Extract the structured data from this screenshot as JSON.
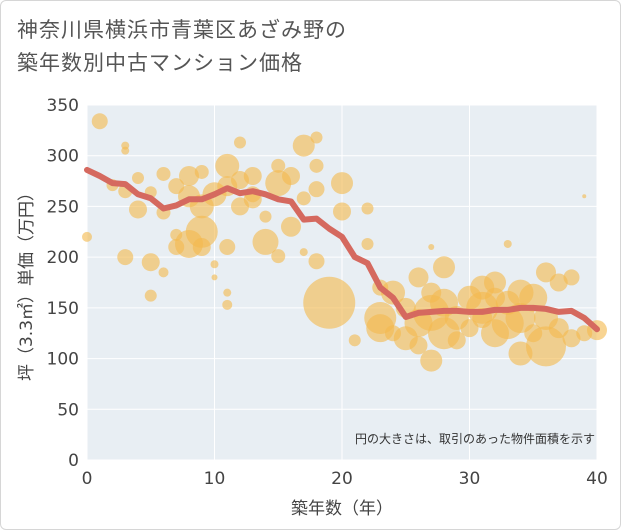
{
  "title_lines": [
    "神奈川県横浜市青葉区あざみ野の",
    "築年数別中古マンション価格"
  ],
  "colors": {
    "plot_bg": "#e8eef3",
    "grid": "#ffffff",
    "bubble": "#f4b94f",
    "line": "#d5695f",
    "axis_text": "#444444"
  },
  "chart_data": {
    "type": "scatter",
    "xlabel": "築年数（年）",
    "ylabel": "坪（3.3㎡）単価（万円）",
    "xlim": [
      0,
      40
    ],
    "ylim": [
      0,
      350
    ],
    "xticks": [
      0,
      10,
      20,
      30,
      40
    ],
    "yticks": [
      0,
      50,
      100,
      150,
      200,
      250,
      300,
      350
    ],
    "grid": true,
    "annotation": "円の大きさは、取引のあった物件面積を示す",
    "line_series": {
      "x": [
        0,
        1,
        2,
        3,
        4,
        5,
        6,
        7,
        8,
        9,
        10,
        11,
        12,
        13,
        14,
        15,
        16,
        17,
        18,
        19,
        20,
        21,
        22,
        23,
        24,
        25,
        26,
        27,
        28,
        29,
        30,
        31,
        32,
        33,
        34,
        35,
        36,
        37,
        38,
        39,
        40
      ],
      "y": [
        286,
        280,
        273,
        272,
        262,
        258,
        248,
        251,
        257,
        257,
        262,
        268,
        263,
        265,
        262,
        257,
        255,
        237,
        238,
        228,
        220,
        200,
        194,
        170,
        160,
        141,
        145,
        146,
        147,
        147,
        146,
        146,
        148,
        148,
        150,
        150,
        149,
        146,
        147,
        140,
        129
      ]
    },
    "bubbles": [
      {
        "x": 0,
        "y": 220,
        "s": 5
      },
      {
        "x": 1,
        "y": 334,
        "s": 8
      },
      {
        "x": 2,
        "y": 271,
        "s": 6
      },
      {
        "x": 3,
        "y": 310,
        "s": 4
      },
      {
        "x": 3,
        "y": 305,
        "s": 4
      },
      {
        "x": 3,
        "y": 265,
        "s": 7
      },
      {
        "x": 3,
        "y": 200,
        "s": 8
      },
      {
        "x": 4,
        "y": 278,
        "s": 6
      },
      {
        "x": 4,
        "y": 247,
        "s": 9
      },
      {
        "x": 5,
        "y": 264,
        "s": 6
      },
      {
        "x": 5,
        "y": 195,
        "s": 9
      },
      {
        "x": 5,
        "y": 162,
        "s": 6
      },
      {
        "x": 6,
        "y": 282,
        "s": 7
      },
      {
        "x": 6,
        "y": 244,
        "s": 7
      },
      {
        "x": 6,
        "y": 185,
        "s": 5
      },
      {
        "x": 7,
        "y": 270,
        "s": 8
      },
      {
        "x": 7,
        "y": 222,
        "s": 6
      },
      {
        "x": 7,
        "y": 210,
        "s": 8
      },
      {
        "x": 8,
        "y": 280,
        "s": 10
      },
      {
        "x": 8,
        "y": 260,
        "s": 11
      },
      {
        "x": 8,
        "y": 213,
        "s": 14
      },
      {
        "x": 9,
        "y": 284,
        "s": 7
      },
      {
        "x": 9,
        "y": 250,
        "s": 12
      },
      {
        "x": 9,
        "y": 225,
        "s": 16
      },
      {
        "x": 9,
        "y": 210,
        "s": 9
      },
      {
        "x": 10,
        "y": 262,
        "s": 12
      },
      {
        "x": 10,
        "y": 193,
        "s": 4
      },
      {
        "x": 10,
        "y": 180,
        "s": 3
      },
      {
        "x": 11,
        "y": 290,
        "s": 12
      },
      {
        "x": 11,
        "y": 270,
        "s": 10
      },
      {
        "x": 11,
        "y": 210,
        "s": 8
      },
      {
        "x": 11,
        "y": 165,
        "s": 4
      },
      {
        "x": 11,
        "y": 153,
        "s": 5
      },
      {
        "x": 12,
        "y": 313,
        "s": 6
      },
      {
        "x": 12,
        "y": 276,
        "s": 9
      },
      {
        "x": 12,
        "y": 250,
        "s": 9
      },
      {
        "x": 13,
        "y": 280,
        "s": 9
      },
      {
        "x": 13,
        "y": 262,
        "s": 8
      },
      {
        "x": 13,
        "y": 257,
        "s": 9
      },
      {
        "x": 14,
        "y": 215,
        "s": 13
      },
      {
        "x": 14,
        "y": 240,
        "s": 6
      },
      {
        "x": 15,
        "y": 273,
        "s": 13
      },
      {
        "x": 15,
        "y": 201,
        "s": 7
      },
      {
        "x": 15,
        "y": 290,
        "s": 7
      },
      {
        "x": 16,
        "y": 230,
        "s": 10
      },
      {
        "x": 16,
        "y": 280,
        "s": 9
      },
      {
        "x": 17,
        "y": 310,
        "s": 11
      },
      {
        "x": 17,
        "y": 205,
        "s": 4
      },
      {
        "x": 17,
        "y": 258,
        "s": 7
      },
      {
        "x": 18,
        "y": 318,
        "s": 6
      },
      {
        "x": 18,
        "y": 290,
        "s": 7
      },
      {
        "x": 18,
        "y": 267,
        "s": 8
      },
      {
        "x": 18,
        "y": 196,
        "s": 8
      },
      {
        "x": 19,
        "y": 155,
        "s": 26
      },
      {
        "x": 20,
        "y": 273,
        "s": 11
      },
      {
        "x": 20,
        "y": 245,
        "s": 9
      },
      {
        "x": 21,
        "y": 118,
        "s": 6
      },
      {
        "x": 22,
        "y": 248,
        "s": 6
      },
      {
        "x": 22,
        "y": 213,
        "s": 6
      },
      {
        "x": 23,
        "y": 170,
        "s": 8
      },
      {
        "x": 23,
        "y": 140,
        "s": 16
      },
      {
        "x": 23,
        "y": 130,
        "s": 14
      },
      {
        "x": 24,
        "y": 165,
        "s": 12
      },
      {
        "x": 24,
        "y": 125,
        "s": 8
      },
      {
        "x": 25,
        "y": 150,
        "s": 10
      },
      {
        "x": 25,
        "y": 120,
        "s": 12
      },
      {
        "x": 26,
        "y": 180,
        "s": 10
      },
      {
        "x": 26,
        "y": 135,
        "s": 14
      },
      {
        "x": 26,
        "y": 113,
        "s": 9
      },
      {
        "x": 27,
        "y": 165,
        "s": 10
      },
      {
        "x": 27,
        "y": 145,
        "s": 18
      },
      {
        "x": 27,
        "y": 98,
        "s": 11
      },
      {
        "x": 27,
        "y": 210,
        "s": 3
      },
      {
        "x": 28,
        "y": 190,
        "s": 11
      },
      {
        "x": 28,
        "y": 155,
        "s": 14
      },
      {
        "x": 28,
        "y": 125,
        "s": 16
      },
      {
        "x": 29,
        "y": 140,
        "s": 12
      },
      {
        "x": 29,
        "y": 118,
        "s": 9
      },
      {
        "x": 30,
        "y": 160,
        "s": 12
      },
      {
        "x": 30,
        "y": 130,
        "s": 9
      },
      {
        "x": 31,
        "y": 170,
        "s": 12
      },
      {
        "x": 31,
        "y": 150,
        "s": 16
      },
      {
        "x": 31,
        "y": 140,
        "s": 10
      },
      {
        "x": 32,
        "y": 175,
        "s": 11
      },
      {
        "x": 32,
        "y": 125,
        "s": 14
      },
      {
        "x": 32,
        "y": 160,
        "s": 10
      },
      {
        "x": 33,
        "y": 213,
        "s": 4
      },
      {
        "x": 33,
        "y": 155,
        "s": 12
      },
      {
        "x": 33,
        "y": 135,
        "s": 16
      },
      {
        "x": 34,
        "y": 165,
        "s": 13
      },
      {
        "x": 34,
        "y": 140,
        "s": 15
      },
      {
        "x": 34,
        "y": 105,
        "s": 12
      },
      {
        "x": 35,
        "y": 160,
        "s": 14
      },
      {
        "x": 35,
        "y": 125,
        "s": 9
      },
      {
        "x": 36,
        "y": 185,
        "s": 10
      },
      {
        "x": 36,
        "y": 112,
        "s": 20
      },
      {
        "x": 36,
        "y": 140,
        "s": 12
      },
      {
        "x": 37,
        "y": 175,
        "s": 9
      },
      {
        "x": 37,
        "y": 130,
        "s": 10
      },
      {
        "x": 38,
        "y": 180,
        "s": 8
      },
      {
        "x": 38,
        "y": 120,
        "s": 9
      },
      {
        "x": 39,
        "y": 125,
        "s": 8
      },
      {
        "x": 40,
        "y": 128,
        "s": 10
      },
      {
        "x": 39,
        "y": 260,
        "s": 2
      }
    ]
  }
}
